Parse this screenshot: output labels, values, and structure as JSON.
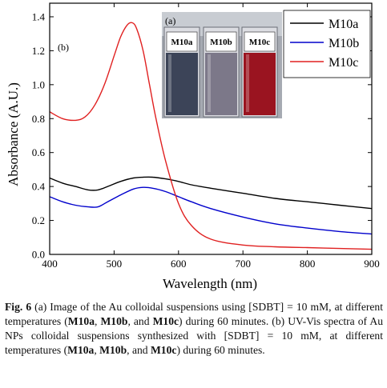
{
  "chart_data": {
    "type": "line",
    "panel_label": "(b)",
    "xlabel": "Wavelength (nm)",
    "ylabel": "Absorbance (A.U.)",
    "xlim": [
      400,
      900
    ],
    "ylim": [
      0.0,
      1.48
    ],
    "xticks": [
      "400",
      "500",
      "600",
      "700",
      "800",
      "900"
    ],
    "yticks": [
      "0.0",
      "0.2",
      "0.4",
      "0.6",
      "0.8",
      "1.0",
      "1.2",
      "1.4"
    ],
    "legend_position": "top-right",
    "series": [
      {
        "name": "M10a",
        "color": "#000000",
        "x": [
          400,
          420,
          440,
          460,
          475,
          490,
          510,
          530,
          545,
          560,
          580,
          600,
          620,
          650,
          700,
          750,
          800,
          850,
          900
        ],
        "y": [
          0.45,
          0.42,
          0.4,
          0.38,
          0.38,
          0.4,
          0.43,
          0.45,
          0.455,
          0.455,
          0.445,
          0.43,
          0.41,
          0.39,
          0.36,
          0.33,
          0.31,
          0.29,
          0.27
        ]
      },
      {
        "name": "M10b",
        "color": "#0000cc",
        "x": [
          400,
          420,
          440,
          460,
          475,
          490,
          510,
          530,
          545,
          560,
          580,
          600,
          620,
          650,
          700,
          750,
          800,
          850,
          900
        ],
        "y": [
          0.34,
          0.31,
          0.29,
          0.28,
          0.28,
          0.31,
          0.35,
          0.385,
          0.395,
          0.39,
          0.37,
          0.34,
          0.31,
          0.27,
          0.22,
          0.18,
          0.155,
          0.135,
          0.12
        ]
      },
      {
        "name": "M10c",
        "color": "#e02020",
        "x": [
          400,
          420,
          440,
          455,
          470,
          485,
          500,
          510,
          520,
          528,
          535,
          545,
          555,
          565,
          580,
          600,
          620,
          650,
          700,
          750,
          800,
          850,
          900
        ],
        "y": [
          0.84,
          0.8,
          0.79,
          0.81,
          0.88,
          1.0,
          1.17,
          1.28,
          1.35,
          1.365,
          1.33,
          1.2,
          1.0,
          0.8,
          0.55,
          0.3,
          0.17,
          0.09,
          0.055,
          0.045,
          0.04,
          0.035,
          0.03
        ]
      }
    ]
  },
  "inset": {
    "label": "(a)",
    "vials": [
      {
        "label": "M10a",
        "liquid": "#3c4458"
      },
      {
        "label": "M10b",
        "liquid": "#7c7889"
      },
      {
        "label": "M10c",
        "liquid": "#9a1420"
      }
    ]
  },
  "caption": {
    "fig_label": "Fig. 6",
    "s1": " (a) Image of the Au colloidal suspensions using [SDBT] = 10 mM, at different temperatures (",
    "m1": "M10a",
    "s2": ", ",
    "m2": "M10b",
    "s3": ", and ",
    "m3": "M10c",
    "s4": ") during 60 minutes. (b) UV-Vis spectra of Au NPs colloidal suspensions synthesized with [SDBT] = 10 mM, at different temperatures (",
    "m4": "M10a",
    "s5": ", ",
    "m5": "M10b",
    "s6": ", and ",
    "m6": "M10c",
    "s7": ") during 60 minutes."
  }
}
